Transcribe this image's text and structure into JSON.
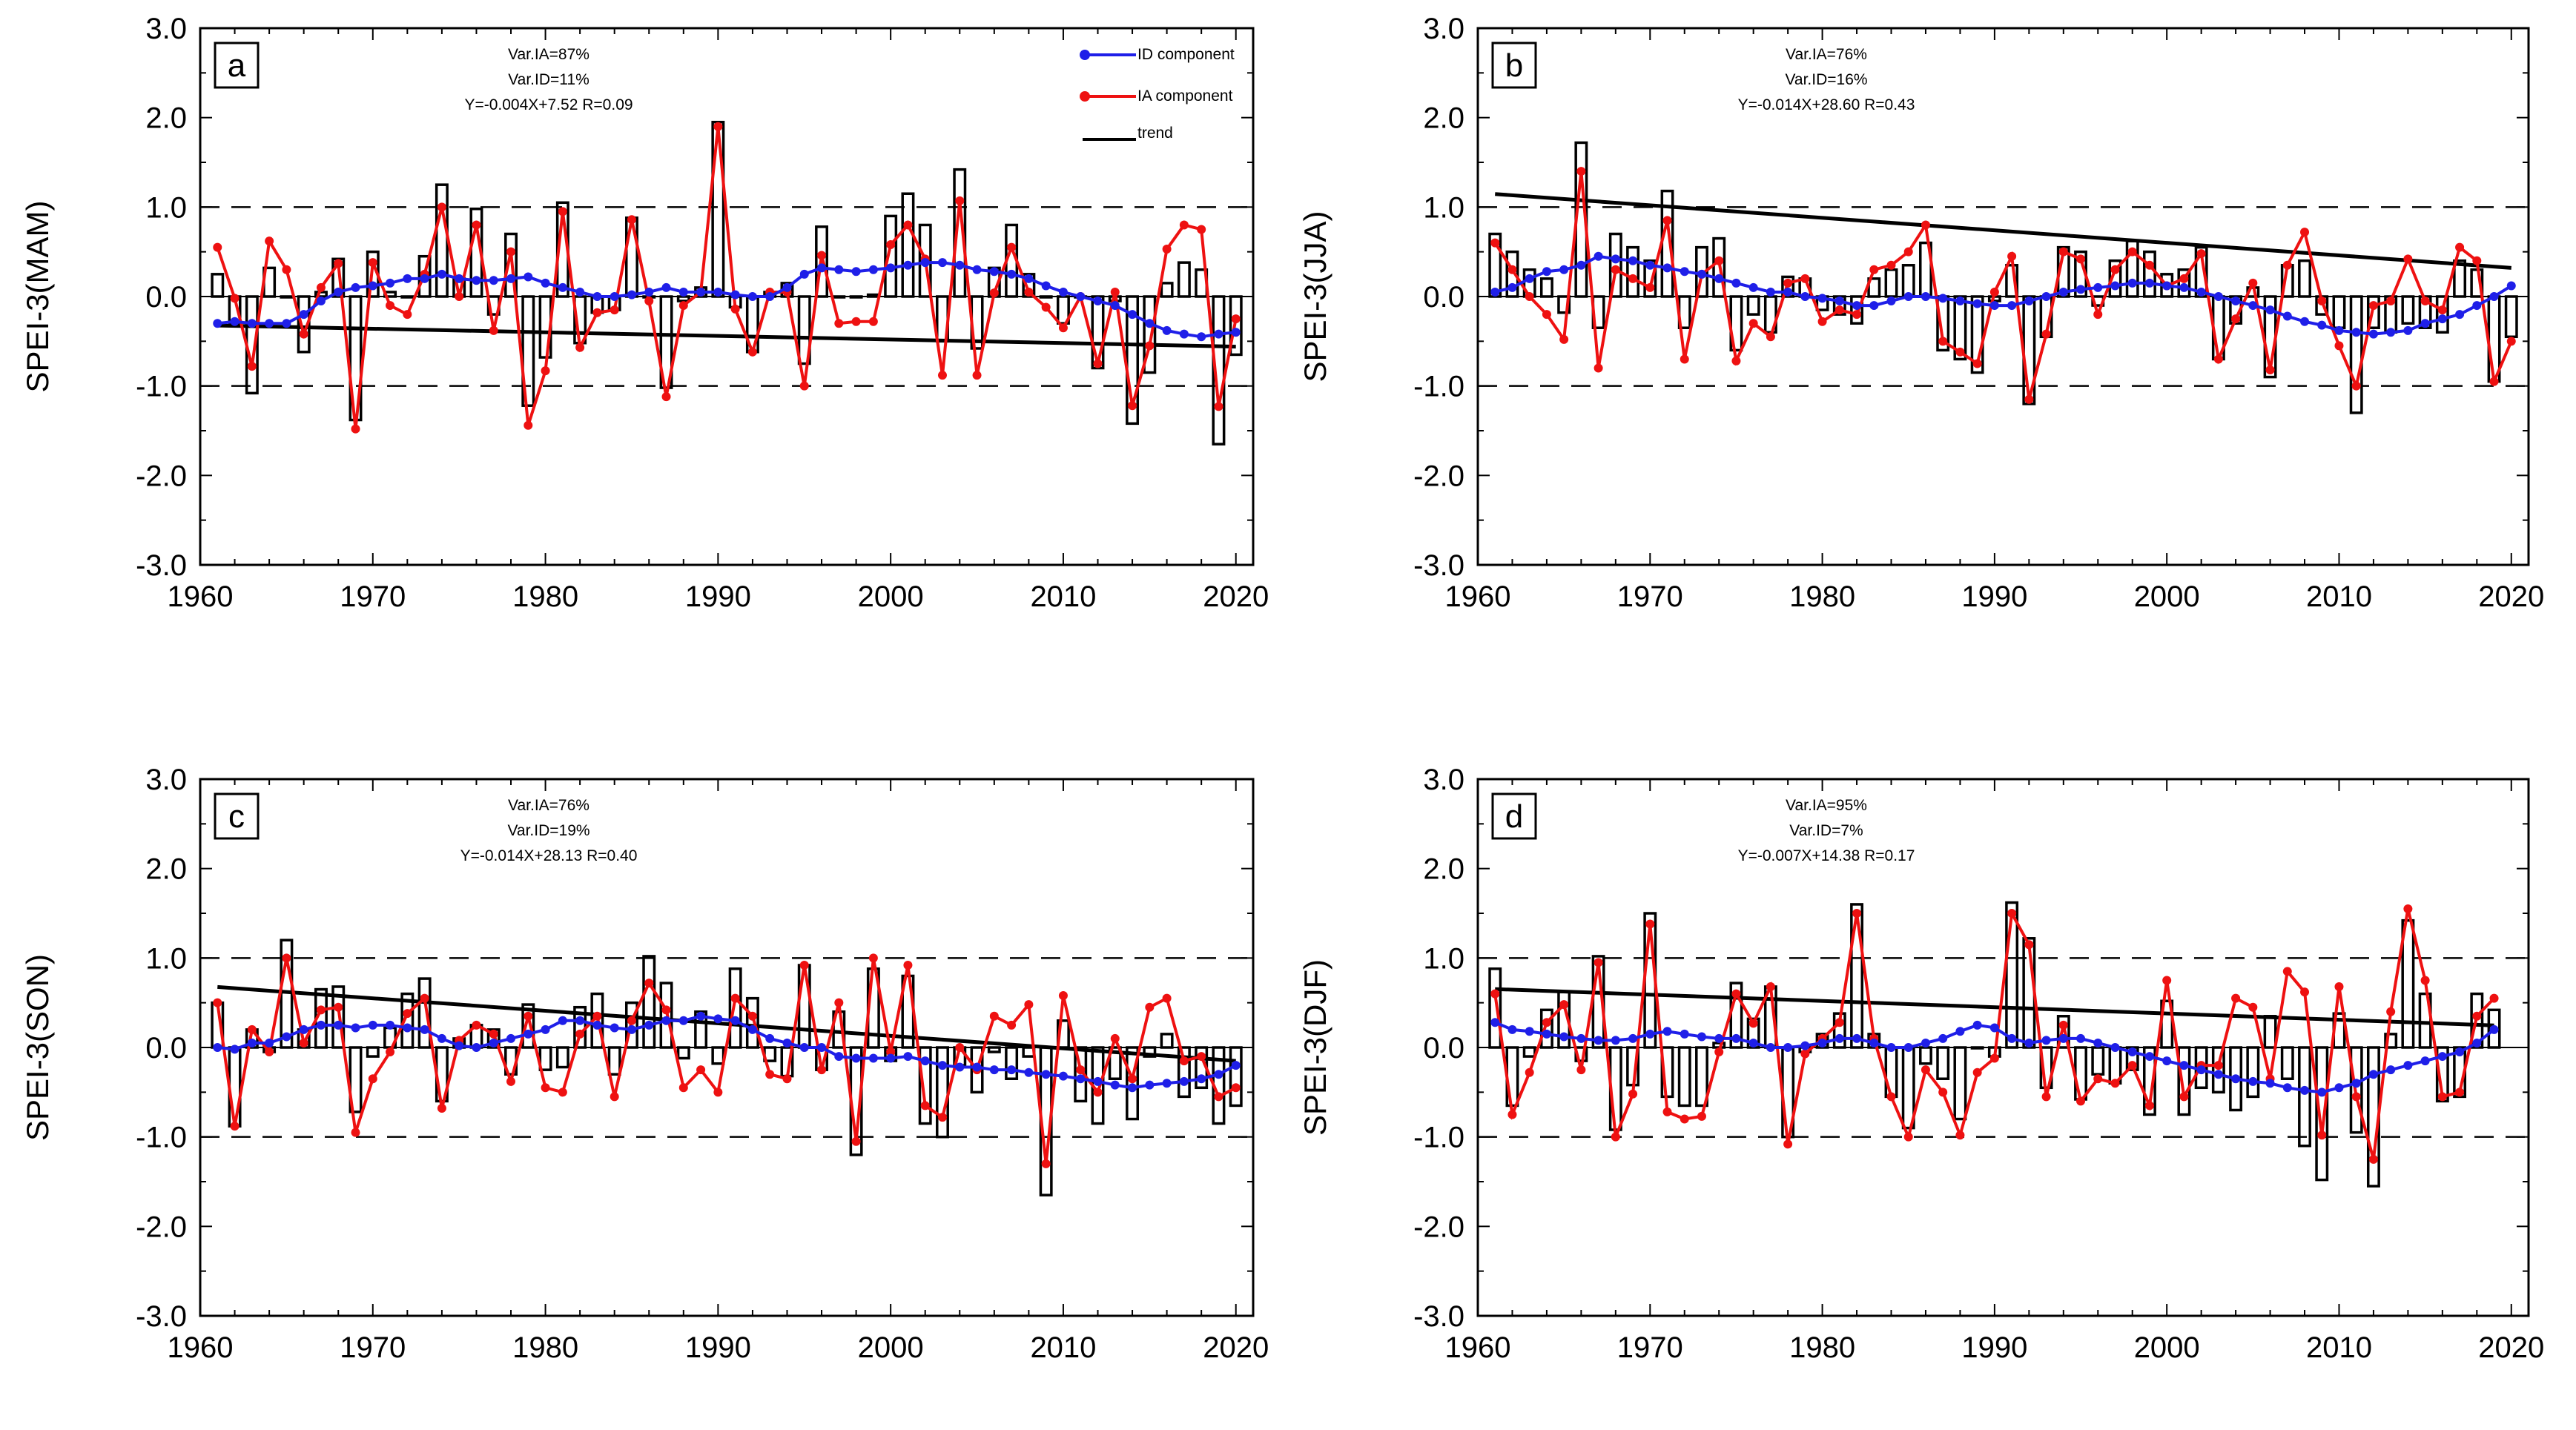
{
  "chart_data": [
    {
      "type": "bar+line",
      "panel": "a",
      "ylabel": "SPEI-3(MAM)",
      "ylim": [
        -3.0,
        3.0
      ],
      "yticks": [
        "3.0",
        "2.0",
        "1.0",
        "0.0",
        "-1.0",
        "-2.0",
        "-3.0"
      ],
      "xlim": [
        1960,
        2021
      ],
      "xticks": [
        "1960",
        "1970",
        "1980",
        "1990",
        "2000",
        "2010",
        "2020"
      ],
      "reference_lines": [
        1.0,
        -1.0
      ],
      "stats": [
        "Var.IA=87%",
        "Var.ID=11%",
        "Y=-0.004X+7.52 R=0.09"
      ],
      "legend": {
        "id_label": "ID component",
        "ia_label": "IA component",
        "trend_label": "trend"
      },
      "trend": {
        "slope": -0.004,
        "intercept": 7.52
      },
      "years": [
        1961,
        1962,
        1963,
        1964,
        1965,
        1966,
        1967,
        1968,
        1969,
        1970,
        1971,
        1972,
        1973,
        1974,
        1975,
        1976,
        1977,
        1978,
        1979,
        1980,
        1981,
        1982,
        1983,
        1984,
        1985,
        1986,
        1987,
        1988,
        1989,
        1990,
        1991,
        1992,
        1993,
        1994,
        1995,
        1996,
        1997,
        1998,
        1999,
        2000,
        2001,
        2002,
        2003,
        2004,
        2005,
        2006,
        2007,
        2008,
        2009,
        2010,
        2011,
        2012,
        2013,
        2014,
        2015,
        2016,
        2017,
        2018,
        2019,
        2020
      ],
      "spei": [
        0.25,
        -0.3,
        -1.08,
        0.32,
        0.0,
        -0.62,
        0.05,
        0.42,
        -1.38,
        0.5,
        0.05,
        0.0,
        0.45,
        1.25,
        0.2,
        0.98,
        -0.2,
        0.7,
        -1.22,
        -0.68,
        1.05,
        -0.52,
        -0.18,
        -0.15,
        0.88,
        0.0,
        -1.02,
        -0.05,
        0.1,
        1.95,
        -0.12,
        -0.62,
        0.05,
        0.15,
        -0.75,
        0.78,
        0.0,
        0.0,
        0.02,
        0.9,
        1.15,
        0.8,
        -0.5,
        1.42,
        -0.58,
        0.32,
        0.8,
        0.25,
        0.0,
        -0.3,
        0.0,
        -0.8,
        -0.05,
        -1.42,
        -0.85,
        0.15,
        0.38,
        0.3,
        -1.65,
        -0.65
      ],
      "id_component": [
        -0.3,
        -0.28,
        -0.3,
        -0.3,
        -0.3,
        -0.2,
        -0.05,
        0.05,
        0.1,
        0.12,
        0.15,
        0.2,
        0.2,
        0.25,
        0.2,
        0.18,
        0.18,
        0.2,
        0.22,
        0.15,
        0.1,
        0.05,
        0.0,
        0.0,
        0.02,
        0.05,
        0.1,
        0.05,
        0.05,
        0.05,
        0.02,
        0.0,
        0.0,
        0.1,
        0.25,
        0.32,
        0.3,
        0.28,
        0.3,
        0.32,
        0.35,
        0.38,
        0.38,
        0.35,
        0.3,
        0.28,
        0.25,
        0.2,
        0.12,
        0.05,
        0.0,
        -0.05,
        -0.1,
        -0.2,
        -0.3,
        -0.38,
        -0.42,
        -0.45,
        -0.42,
        -0.4
      ],
      "ia_component": [
        0.55,
        -0.02,
        -0.78,
        0.62,
        0.3,
        -0.42,
        0.1,
        0.37,
        -1.48,
        0.38,
        -0.1,
        -0.2,
        0.25,
        1.0,
        0.0,
        0.8,
        -0.38,
        0.5,
        -1.44,
        -0.83,
        0.95,
        -0.57,
        -0.18,
        -0.15,
        0.86,
        -0.05,
        -1.12,
        -0.1,
        0.05,
        1.9,
        -0.14,
        -0.62,
        0.05,
        0.05,
        -1.0,
        0.46,
        -0.3,
        -0.28,
        -0.28,
        0.58,
        0.8,
        0.42,
        -0.88,
        1.07,
        -0.88,
        0.04,
        0.55,
        0.05,
        -0.12,
        -0.35,
        0.0,
        -0.75,
        0.05,
        -1.22,
        -0.55,
        0.53,
        0.8,
        0.75,
        -1.23,
        -0.25
      ]
    },
    {
      "type": "bar+line",
      "panel": "b",
      "ylabel": "SPEI-3(JJA)",
      "ylim": [
        -3.0,
        3.0
      ],
      "yticks": [
        "3.0",
        "2.0",
        "1.0",
        "0.0",
        "-1.0",
        "-2.0",
        "-3.0"
      ],
      "xlim": [
        1960,
        2021
      ],
      "xticks": [
        "1960",
        "1970",
        "1980",
        "1990",
        "2000",
        "2010",
        "2020"
      ],
      "reference_lines": [
        1.0,
        -1.0
      ],
      "stats": [
        "Var.IA=76%",
        "Var.ID=16%",
        "Y=-0.014X+28.60 R=0.43"
      ],
      "legend": null,
      "trend": {
        "slope": -0.014,
        "intercept": 28.6
      },
      "years": [
        1961,
        1962,
        1963,
        1964,
        1965,
        1966,
        1967,
        1968,
        1969,
        1970,
        1971,
        1972,
        1973,
        1974,
        1975,
        1976,
        1977,
        1978,
        1979,
        1980,
        1981,
        1982,
        1983,
        1984,
        1985,
        1986,
        1987,
        1988,
        1989,
        1990,
        1991,
        1992,
        1993,
        1994,
        1995,
        1996,
        1997,
        1998,
        1999,
        2000,
        2001,
        2002,
        2003,
        2004,
        2005,
        2006,
        2007,
        2008,
        2009,
        2010,
        2011,
        2012,
        2013,
        2014,
        2015,
        2016,
        2017,
        2018,
        2019,
        2020
      ],
      "spei": [
        0.7,
        0.5,
        0.3,
        0.2,
        -0.18,
        1.72,
        -0.35,
        0.7,
        0.55,
        0.4,
        1.18,
        -0.35,
        0.55,
        0.65,
        -0.6,
        -0.2,
        -0.4,
        0.22,
        0.2,
        -0.15,
        -0.2,
        -0.3,
        0.2,
        0.3,
        0.35,
        0.6,
        -0.6,
        -0.7,
        -0.85,
        -0.05,
        0.35,
        -1.2,
        -0.45,
        0.55,
        0.5,
        -0.1,
        0.4,
        0.62,
        0.5,
        0.25,
        0.3,
        0.55,
        -0.7,
        -0.3,
        0.1,
        -0.9,
        0.35,
        0.4,
        -0.2,
        -0.35,
        -1.3,
        -0.35,
        -0.4,
        -0.3,
        -0.35,
        -0.4,
        0.4,
        0.3,
        -0.95,
        -0.45
      ],
      "id_component": [
        0.05,
        0.1,
        0.2,
        0.28,
        0.3,
        0.35,
        0.45,
        0.42,
        0.4,
        0.35,
        0.32,
        0.28,
        0.25,
        0.2,
        0.15,
        0.1,
        0.05,
        0.05,
        0.0,
        -0.02,
        -0.05,
        -0.1,
        -0.1,
        -0.05,
        0.0,
        0.0,
        -0.02,
        -0.05,
        -0.08,
        -0.1,
        -0.1,
        -0.05,
        0.0,
        0.05,
        0.08,
        0.1,
        0.12,
        0.15,
        0.15,
        0.12,
        0.1,
        0.05,
        0.0,
        -0.05,
        -0.1,
        -0.15,
        -0.22,
        -0.28,
        -0.32,
        -0.38,
        -0.4,
        -0.42,
        -0.4,
        -0.38,
        -0.3,
        -0.25,
        -0.2,
        -0.1,
        0.0,
        0.12
      ],
      "ia_component": [
        0.6,
        0.3,
        0.0,
        -0.2,
        -0.48,
        1.4,
        -0.8,
        0.3,
        0.2,
        0.1,
        0.85,
        -0.7,
        0.25,
        0.4,
        -0.72,
        -0.3,
        -0.45,
        0.15,
        0.2,
        -0.28,
        -0.15,
        -0.2,
        0.3,
        0.35,
        0.5,
        0.8,
        -0.5,
        -0.62,
        -0.75,
        0.05,
        0.45,
        -1.15,
        -0.42,
        0.5,
        0.42,
        -0.2,
        0.3,
        0.5,
        0.35,
        0.12,
        0.2,
        0.48,
        -0.7,
        -0.25,
        0.15,
        -0.82,
        0.35,
        0.72,
        -0.05,
        -0.55,
        -1.0,
        -0.1,
        -0.05,
        0.42,
        -0.05,
        -0.15,
        0.55,
        0.4,
        -0.95,
        -0.5
      ]
    },
    {
      "type": "bar+line",
      "panel": "c",
      "ylabel": "SPEI-3(SON)",
      "ylim": [
        -3.0,
        3.0
      ],
      "yticks": [
        "3.0",
        "2.0",
        "1.0",
        "0.0",
        "-1.0",
        "-2.0",
        "-3.0"
      ],
      "xlim": [
        1960,
        2021
      ],
      "xticks": [
        "1960",
        "1970",
        "1980",
        "1990",
        "2000",
        "2010",
        "2020"
      ],
      "reference_lines": [
        1.0,
        -1.0
      ],
      "stats": [
        "Var.IA=76%",
        "Var.ID=19%",
        "Y=-0.014X+28.13 R=0.40"
      ],
      "legend": null,
      "trend": {
        "slope": -0.014,
        "intercept": 28.13
      },
      "years": [
        1961,
        1962,
        1963,
        1964,
        1965,
        1966,
        1967,
        1968,
        1969,
        1970,
        1971,
        1972,
        1973,
        1974,
        1975,
        1976,
        1977,
        1978,
        1979,
        1980,
        1981,
        1982,
        1983,
        1984,
        1985,
        1986,
        1987,
        1988,
        1989,
        1990,
        1991,
        1992,
        1993,
        1994,
        1995,
        1996,
        1997,
        1998,
        1999,
        2000,
        2001,
        2002,
        2003,
        2004,
        2005,
        2006,
        2007,
        2008,
        2009,
        2010,
        2011,
        2012,
        2013,
        2014,
        2015,
        2016,
        2017,
        2018,
        2019,
        2020
      ],
      "spei": [
        0.5,
        -0.88,
        0.2,
        -0.05,
        1.2,
        0.2,
        0.65,
        0.68,
        -0.72,
        -0.1,
        0.22,
        0.6,
        0.77,
        -0.6,
        0.1,
        0.25,
        0.2,
        -0.3,
        0.48,
        -0.25,
        -0.22,
        0.45,
        0.6,
        -0.3,
        0.5,
        1.02,
        0.72,
        -0.12,
        0.4,
        -0.18,
        0.88,
        0.55,
        -0.15,
        -0.32,
        0.92,
        -0.25,
        0.4,
        -1.2,
        0.88,
        -0.15,
        0.8,
        -0.85,
        -1.0,
        -0.2,
        -0.5,
        -0.05,
        -0.35,
        -0.1,
        -1.65,
        0.3,
        -0.6,
        -0.85,
        -0.35,
        -0.8,
        -0.1,
        0.15,
        -0.55,
        -0.45,
        -0.85,
        -0.65
      ],
      "id_component": [
        0.0,
        -0.02,
        0.05,
        0.05,
        0.12,
        0.2,
        0.25,
        0.25,
        0.22,
        0.25,
        0.25,
        0.22,
        0.2,
        0.1,
        0.02,
        0.0,
        0.05,
        0.1,
        0.15,
        0.2,
        0.3,
        0.3,
        0.25,
        0.22,
        0.2,
        0.25,
        0.3,
        0.3,
        0.35,
        0.32,
        0.3,
        0.2,
        0.1,
        0.05,
        0.0,
        0.0,
        -0.1,
        -0.12,
        -0.12,
        -0.12,
        -0.1,
        -0.15,
        -0.2,
        -0.22,
        -0.22,
        -0.25,
        -0.25,
        -0.28,
        -0.3,
        -0.32,
        -0.35,
        -0.38,
        -0.42,
        -0.45,
        -0.42,
        -0.4,
        -0.38,
        -0.35,
        -0.3,
        -0.2
      ],
      "ia_component": [
        0.5,
        -0.88,
        0.2,
        -0.05,
        1.0,
        0.05,
        0.42,
        0.45,
        -0.95,
        -0.35,
        -0.05,
        0.38,
        0.55,
        -0.68,
        0.08,
        0.25,
        0.15,
        -0.38,
        0.35,
        -0.45,
        -0.5,
        0.15,
        0.35,
        -0.55,
        0.3,
        0.72,
        0.42,
        -0.45,
        -0.25,
        -0.5,
        0.55,
        0.35,
        -0.3,
        -0.35,
        0.92,
        -0.25,
        0.5,
        -1.05,
        1.0,
        -0.05,
        0.92,
        -0.65,
        -0.78,
        0.0,
        -0.25,
        0.35,
        0.25,
        0.48,
        -1.3,
        0.58,
        -0.25,
        -0.5,
        0.1,
        -0.35,
        0.45,
        0.55,
        -0.15,
        -0.1,
        -0.55,
        -0.45
      ]
    },
    {
      "type": "bar+line",
      "panel": "d",
      "ylabel": "SPEI-3(DJF)",
      "ylim": [
        -3.0,
        3.0
      ],
      "yticks": [
        "3.0",
        "2.0",
        "1.0",
        "0.0",
        "-1.0",
        "-2.0",
        "-3.0"
      ],
      "xlim": [
        1960,
        2021
      ],
      "xticks": [
        "1960",
        "1970",
        "1980",
        "1990",
        "2000",
        "2010",
        "2020"
      ],
      "reference_lines": [
        1.0,
        -1.0
      ],
      "stats": [
        "Var.IA=95%",
        "Var.ID=7%",
        "Y=-0.007X+14.38 R=0.17"
      ],
      "legend": null,
      "trend": {
        "slope": -0.007,
        "intercept": 14.38
      },
      "years": [
        1961,
        1962,
        1963,
        1964,
        1965,
        1966,
        1967,
        1968,
        1969,
        1970,
        1971,
        1972,
        1973,
        1974,
        1975,
        1976,
        1977,
        1978,
        1979,
        1980,
        1981,
        1982,
        1983,
        1984,
        1985,
        1986,
        1987,
        1988,
        1989,
        1990,
        1991,
        1992,
        1993,
        1994,
        1995,
        1996,
        1997,
        1998,
        1999,
        2000,
        2001,
        2002,
        2003,
        2004,
        2005,
        2006,
        2007,
        2008,
        2009,
        2010,
        2011,
        2012,
        2013,
        2014,
        2015,
        2016,
        2017,
        2018,
        2019
      ],
      "spei": [
        0.88,
        -0.65,
        -0.1,
        0.42,
        0.62,
        -0.15,
        1.02,
        -0.92,
        -0.42,
        1.5,
        -0.55,
        -0.65,
        -0.65,
        0.05,
        0.72,
        0.32,
        0.68,
        -1.0,
        -0.05,
        0.15,
        0.38,
        1.6,
        0.15,
        -0.55,
        -0.9,
        -0.18,
        -0.35,
        -0.8,
        0.0,
        -0.1,
        1.62,
        1.22,
        -0.45,
        0.35,
        -0.58,
        -0.3,
        -0.4,
        -0.25,
        -0.75,
        0.52,
        -0.75,
        -0.45,
        -0.5,
        -0.7,
        -0.55,
        0.35,
        -0.35,
        -1.1,
        -1.48,
        0.38,
        -0.95,
        -1.55,
        0.15,
        1.42,
        0.6,
        -0.6,
        -0.55,
        0.6,
        0.42
      ],
      "id_component": [
        0.28,
        0.2,
        0.18,
        0.15,
        0.12,
        0.1,
        0.08,
        0.08,
        0.1,
        0.15,
        0.18,
        0.15,
        0.12,
        0.1,
        0.1,
        0.05,
        0.0,
        0.0,
        0.02,
        0.05,
        0.1,
        0.1,
        0.05,
        0.0,
        0.0,
        0.05,
        0.1,
        0.18,
        0.25,
        0.22,
        0.1,
        0.05,
        0.08,
        0.1,
        0.1,
        0.05,
        0.0,
        -0.05,
        -0.1,
        -0.15,
        -0.2,
        -0.25,
        -0.3,
        -0.35,
        -0.38,
        -0.4,
        -0.45,
        -0.48,
        -0.5,
        -0.45,
        -0.4,
        -0.3,
        -0.25,
        -0.2,
        -0.15,
        -0.1,
        -0.05,
        0.05,
        0.2
      ],
      "ia_component": [
        0.6,
        -0.75,
        -0.28,
        0.28,
        0.48,
        -0.25,
        0.95,
        -1.0,
        -0.52,
        1.38,
        -0.72,
        -0.8,
        -0.77,
        -0.05,
        0.6,
        0.27,
        0.68,
        -1.08,
        -0.07,
        0.1,
        0.28,
        1.5,
        0.1,
        -0.55,
        -1.0,
        -0.25,
        -0.5,
        -0.98,
        -0.28,
        -0.12,
        1.5,
        1.15,
        -0.55,
        0.25,
        -0.6,
        -0.35,
        -0.4,
        -0.2,
        -0.65,
        0.75,
        -0.55,
        -0.2,
        -0.2,
        0.55,
        0.45,
        -0.35,
        0.85,
        0.62,
        -0.98,
        0.68,
        -0.55,
        -1.25,
        0.4,
        1.55,
        0.75,
        -0.55,
        -0.5,
        0.35,
        0.55
      ]
    }
  ]
}
